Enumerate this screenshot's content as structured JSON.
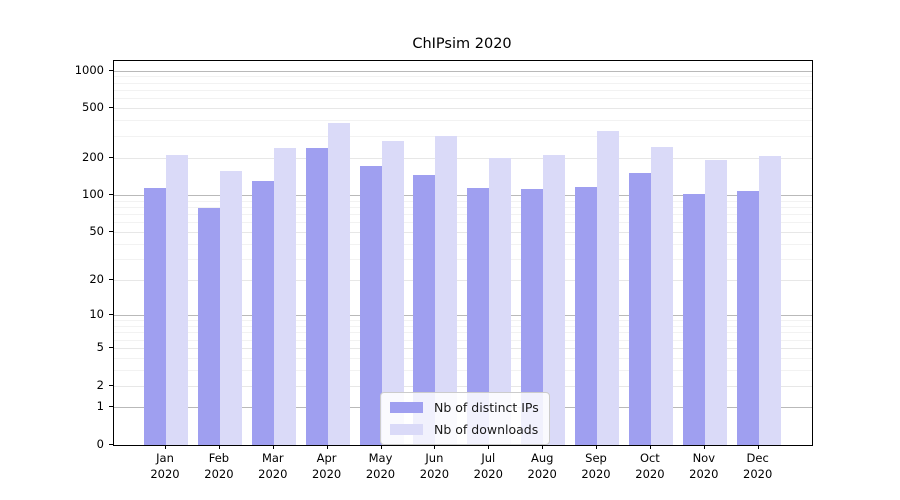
{
  "chart_data": {
    "type": "bar",
    "title": "ChIPsim 2020",
    "categories": [
      "Jan 2020",
      "Feb 2020",
      "Mar 2020",
      "Apr 2020",
      "May 2020",
      "Jun 2020",
      "Jul 2020",
      "Aug 2020",
      "Sep 2020",
      "Oct 2020",
      "Nov 2020",
      "Dec 2020"
    ],
    "series": [
      {
        "name": "Nb of distinct IPs",
        "color": "#9f9ff0",
        "values": [
          115,
          79,
          130,
          241,
          172,
          146,
          115,
          111,
          116,
          150,
          102,
          107
        ]
      },
      {
        "name": "Nb of downloads",
        "color": "#dadaf8",
        "values": [
          212,
          157,
          238,
          382,
          273,
          299,
          200,
          210,
          330,
          242,
          191,
          206
        ]
      }
    ],
    "yticks": [
      0,
      1,
      2,
      5,
      10,
      20,
      50,
      100,
      200,
      500,
      1000
    ],
    "yminorticks": [
      3,
      4,
      6,
      7,
      8,
      9,
      30,
      40,
      60,
      70,
      80,
      90,
      300,
      400,
      600,
      700,
      800,
      900
    ],
    "yscale": "log10(value+1)",
    "ylim": [
      0,
      1200
    ],
    "xlabel": "",
    "ylabel": "",
    "grid": true,
    "legend_position": "lower center"
  }
}
